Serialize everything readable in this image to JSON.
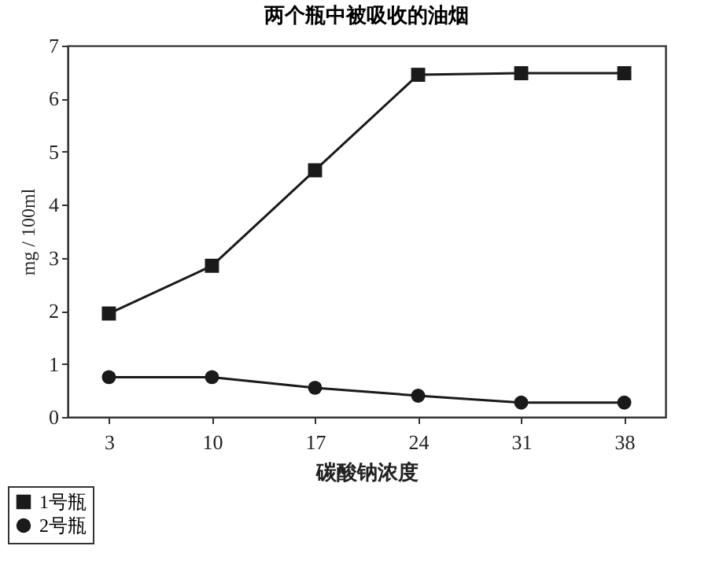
{
  "chart_data": {
    "type": "line",
    "title": "两个瓶中被吸收的油烟",
    "xlabel": "碳酸钠浓度",
    "ylabel": "mg / 100ml",
    "categories": [
      "3",
      "10",
      "17",
      "24",
      "31",
      "38"
    ],
    "series": [
      {
        "name": "1号瓶",
        "color": "#1a1a1a",
        "marker": "square",
        "values": [
          1.95,
          2.85,
          4.65,
          6.45,
          6.48,
          6.48
        ]
      },
      {
        "name": "2号瓶",
        "color": "#1a1a1a",
        "marker": "circle",
        "values": [
          0.75,
          0.75,
          0.55,
          0.4,
          0.27,
          0.27
        ]
      }
    ],
    "ylim": [
      0,
      7
    ],
    "yticks": [
      0,
      1,
      2,
      3,
      4,
      5,
      6,
      7
    ],
    "grid": false,
    "legend": "bottom left",
    "line_style": "solid"
  }
}
